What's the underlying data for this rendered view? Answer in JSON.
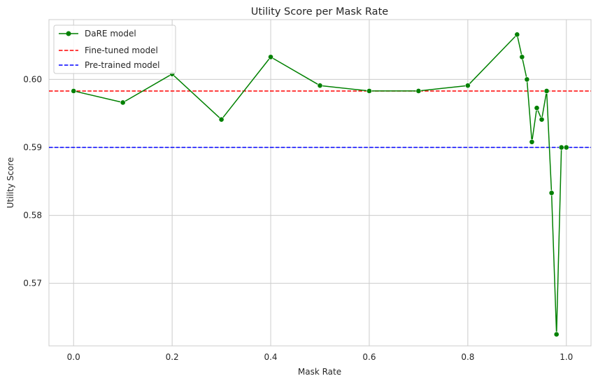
{
  "chart_data": {
    "type": "line",
    "title": "Utility Score per Mask Rate",
    "xlabel": "Mask Rate",
    "ylabel": "Utility Score",
    "xlim": [
      -0.05,
      1.05
    ],
    "ylim": [
      0.5608,
      0.6088
    ],
    "xticks": [
      "0.0",
      "0.2",
      "0.4",
      "0.6",
      "0.8",
      "1.0"
    ],
    "yticks": [
      "0.57",
      "0.58",
      "0.59",
      "0.60"
    ],
    "grid": true,
    "legend_position": "top-left",
    "series": [
      {
        "name": "DaRE model",
        "style": "solid",
        "marker": "circle",
        "color": "#008000",
        "x": [
          0.0,
          0.1,
          0.2,
          0.3,
          0.4,
          0.5,
          0.6,
          0.7,
          0.8,
          0.9,
          0.91,
          0.92,
          0.93,
          0.94,
          0.95,
          0.96,
          0.97,
          0.98,
          0.99,
          1.0
        ],
        "y": [
          0.5983,
          0.5966,
          0.6008,
          0.5941,
          0.6033,
          0.5991,
          0.5983,
          0.5983,
          0.5991,
          0.6066,
          0.6033,
          0.6,
          0.5908,
          0.5958,
          0.5941,
          0.5983,
          0.5833,
          0.5625,
          0.59,
          0.59
        ]
      },
      {
        "name": "Fine-tuned model",
        "style": "dashed",
        "color": "#ff0000",
        "y": 0.5983
      },
      {
        "name": "Pre-trained model",
        "style": "dashed",
        "color": "#0000ff",
        "y": 0.59
      }
    ]
  }
}
